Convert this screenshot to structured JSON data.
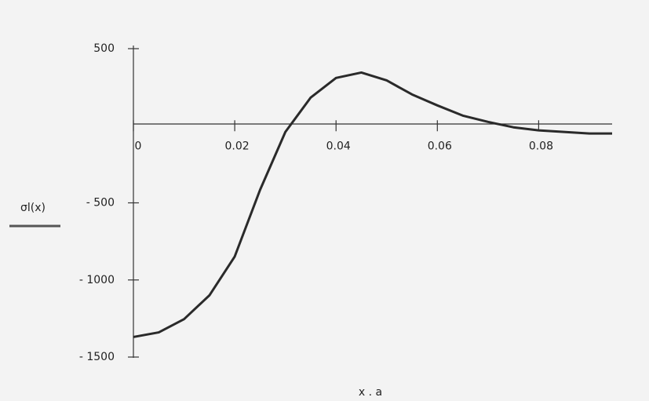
{
  "chart_data": {
    "type": "line",
    "xlabel": "x . a",
    "ylabel": "σl(x)",
    "x": [
      0,
      0.005,
      0.01,
      0.015,
      0.02,
      0.025,
      0.03,
      0.035,
      0.04,
      0.045,
      0.05,
      0.055,
      0.06,
      0.065,
      0.07,
      0.075,
      0.08,
      0.085,
      0.09,
      0.0945
    ],
    "series": [
      {
        "color": "#2a2a2a",
        "values": [
          -1370,
          -1340,
          -1254,
          -1100,
          -848,
          -416,
          -40,
          183,
          310,
          345,
          294,
          203,
          132,
          66,
          25,
          -10,
          -30,
          -40,
          -50,
          -50
        ]
      }
    ],
    "xlim": [
      0,
      0.0945
    ],
    "ylim": [
      -1500,
      500
    ],
    "xticks": [
      0,
      0.02,
      0.04,
      0.06,
      0.08
    ],
    "yticks": [
      500,
      {
        "value": -500,
        "label": "- 500"
      },
      {
        "value": -1000,
        "label": "- 1000"
      },
      {
        "value": -1500,
        "label": "- 1500"
      }
    ]
  }
}
